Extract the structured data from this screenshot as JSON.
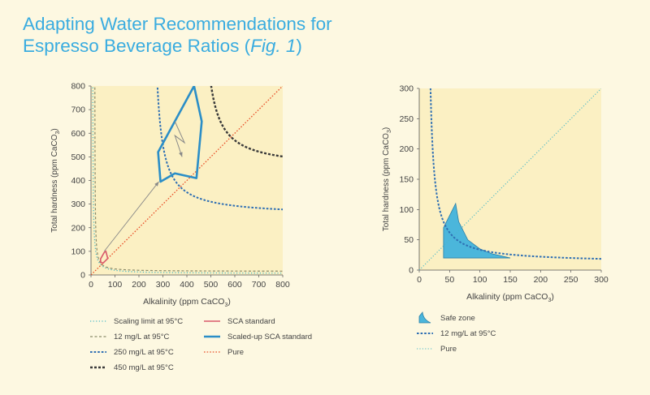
{
  "title": {
    "line1": "Adapting Water Recommendations for",
    "line2": "Espresso Beverage Ratios (",
    "fig": "Fig. 1",
    "close": ")"
  },
  "colors": {
    "background": "#fdf8e1",
    "plot_area": "#fbf0c3",
    "title": "#3aace0",
    "scaling": "#4ab8c7",
    "mg12": "#8a8a6a",
    "mg250": "#2f6fb3",
    "mg450": "#3a3a3a",
    "sca": "#d9596b",
    "scaled_sca": "#2b8ec7",
    "pure": "#e8502a",
    "safe_zone": "#4bb6db",
    "pure_right": "#4ab8c7"
  },
  "chart_data": [
    {
      "type": "line",
      "name": "left-chart",
      "xlabel": "Alkalinity (ppm CaCO",
      "ylabel": "Total hardness (ppm CaCO",
      "sub": "3",
      "xlim": [
        0,
        800
      ],
      "ylim": [
        0,
        800
      ],
      "xticks": [
        "0",
        "100",
        "200",
        "300",
        "400",
        "500",
        "600",
        "700",
        "800"
      ],
      "yticks": [
        "0",
        "100",
        "200",
        "300",
        "400",
        "500",
        "600",
        "700",
        "800"
      ],
      "series": [
        {
          "name": "Scaling limit at 95°C",
          "K": 1300,
          "a0": 6
        },
        {
          "name": "12 mg/L at 95°C",
          "K": 900,
          "a0": 15
        },
        {
          "name": "250 mg/L at 95°C",
          "K": 15000,
          "a0": 250
        },
        {
          "name": "450 mg/L at 95°C",
          "K": 18000,
          "a0": 450
        },
        {
          "name": "Pure",
          "points": [
            [
              0,
              0
            ],
            [
              800,
              800
            ]
          ]
        }
      ],
      "sca_standard": [
        [
          40,
          68
        ],
        [
          55,
          95
        ],
        [
          62,
          100
        ],
        [
          70,
          70
        ],
        [
          50,
          50
        ],
        [
          40,
          55
        ]
      ],
      "scaled_sca_standard": [
        [
          280,
          520
        ],
        [
          430,
          800
        ],
        [
          462,
          650
        ],
        [
          440,
          410
        ],
        [
          350,
          430
        ],
        [
          290,
          395
        ]
      ],
      "annotations": {
        "zigzag": [
          [
            350,
            650
          ],
          [
            390,
            560
          ],
          [
            350,
            590
          ],
          [
            380,
            500
          ]
        ],
        "arrow": [
          [
            55,
            100
          ],
          [
            283,
            395
          ]
        ]
      },
      "legend": [
        {
          "label": "Scaling limit at 95°C",
          "style": "scaling"
        },
        {
          "label": "12 mg/L at 95°C",
          "style": "mg12"
        },
        {
          "label": "250 mg/L at 95°C",
          "style": "mg250"
        },
        {
          "label": "450 mg/L at 95°C",
          "style": "mg450"
        },
        {
          "label": "SCA standard",
          "style": "sca"
        },
        {
          "label": "Scaled-up SCA standard",
          "style": "scaled_sca"
        },
        {
          "label": "Pure",
          "style": "pure"
        }
      ]
    },
    {
      "type": "line",
      "name": "right-chart",
      "xlabel": "Alkalinity (ppm CaCO",
      "ylabel": "Total hardness (ppm CaCO",
      "sub": "3",
      "xlim": [
        0,
        300
      ],
      "ylim": [
        0,
        300
      ],
      "xticks": [
        "0",
        "50",
        "100",
        "150",
        "200",
        "250",
        "300"
      ],
      "yticks": [
        "0",
        "50",
        "100",
        "150",
        "200",
        "250",
        "300"
      ],
      "series": [
        {
          "name": "12 mg/L at 95°C",
          "K": 1900,
          "a0": 12
        },
        {
          "name": "Pure",
          "points": [
            [
              0,
              0
            ],
            [
              300,
              300
            ]
          ]
        }
      ],
      "safe_zone": [
        [
          40,
          70
        ],
        [
          60,
          110
        ],
        [
          65,
          80
        ],
        [
          80,
          50
        ],
        [
          100,
          35
        ],
        [
          120,
          27
        ],
        [
          150,
          20
        ],
        [
          40,
          20
        ]
      ],
      "legend": [
        {
          "label": "Safe zone",
          "style": "safe_zone"
        },
        {
          "label": "12 mg/L at 95°C",
          "style": "mg250"
        },
        {
          "label": "Pure",
          "style": "pure_right"
        }
      ]
    }
  ]
}
